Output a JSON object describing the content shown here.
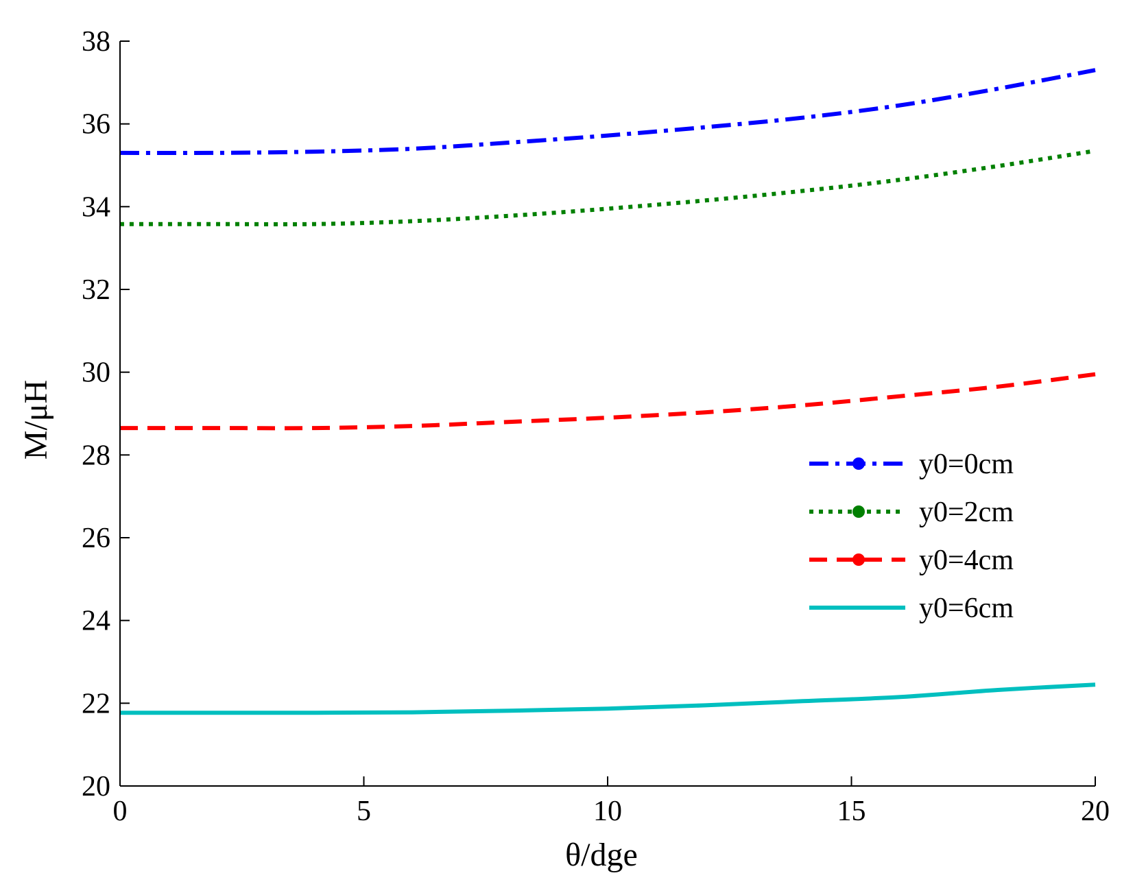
{
  "chart_data": {
    "type": "line",
    "title": "",
    "xlabel": "θ/dge",
    "ylabel": "M/μH",
    "xlim": [
      0,
      20
    ],
    "ylim": [
      20,
      38
    ],
    "xticks": [
      0,
      5,
      10,
      15,
      20
    ],
    "yticks": [
      20,
      22,
      24,
      26,
      28,
      30,
      32,
      34,
      36,
      38
    ],
    "grid": false,
    "legend_position": "right",
    "series": [
      {
        "name": "y0=0cm",
        "color": "#0000ff",
        "style": "dashdot",
        "x": [
          0,
          2,
          4,
          6,
          8,
          10,
          12,
          14,
          16,
          18,
          20
        ],
        "values": [
          35.3,
          35.3,
          35.33,
          35.4,
          35.55,
          35.72,
          35.92,
          36.15,
          36.45,
          36.85,
          37.3
        ]
      },
      {
        "name": "y0=2cm",
        "color": "#008000",
        "style": "dotted",
        "x": [
          0,
          2,
          4,
          6,
          8,
          10,
          12,
          14,
          16,
          18,
          20
        ],
        "values": [
          33.58,
          33.58,
          33.58,
          33.65,
          33.78,
          33.95,
          34.15,
          34.38,
          34.65,
          34.98,
          35.35
        ]
      },
      {
        "name": "y0=4cm",
        "color": "#ff0000",
        "style": "dashed",
        "x": [
          0,
          2,
          4,
          6,
          8,
          10,
          12,
          14,
          16,
          18,
          20
        ],
        "values": [
          28.65,
          28.65,
          28.65,
          28.7,
          28.8,
          28.9,
          29.03,
          29.2,
          29.42,
          29.65,
          29.95
        ]
      },
      {
        "name": "y0=6cm",
        "color": "#00bfbf",
        "style": "solid",
        "x": [
          0,
          2,
          4,
          6,
          8,
          10,
          12,
          14,
          16,
          18,
          20
        ],
        "values": [
          21.77,
          21.77,
          21.77,
          21.78,
          21.82,
          21.87,
          21.95,
          22.05,
          22.15,
          22.32,
          22.45
        ]
      }
    ]
  }
}
